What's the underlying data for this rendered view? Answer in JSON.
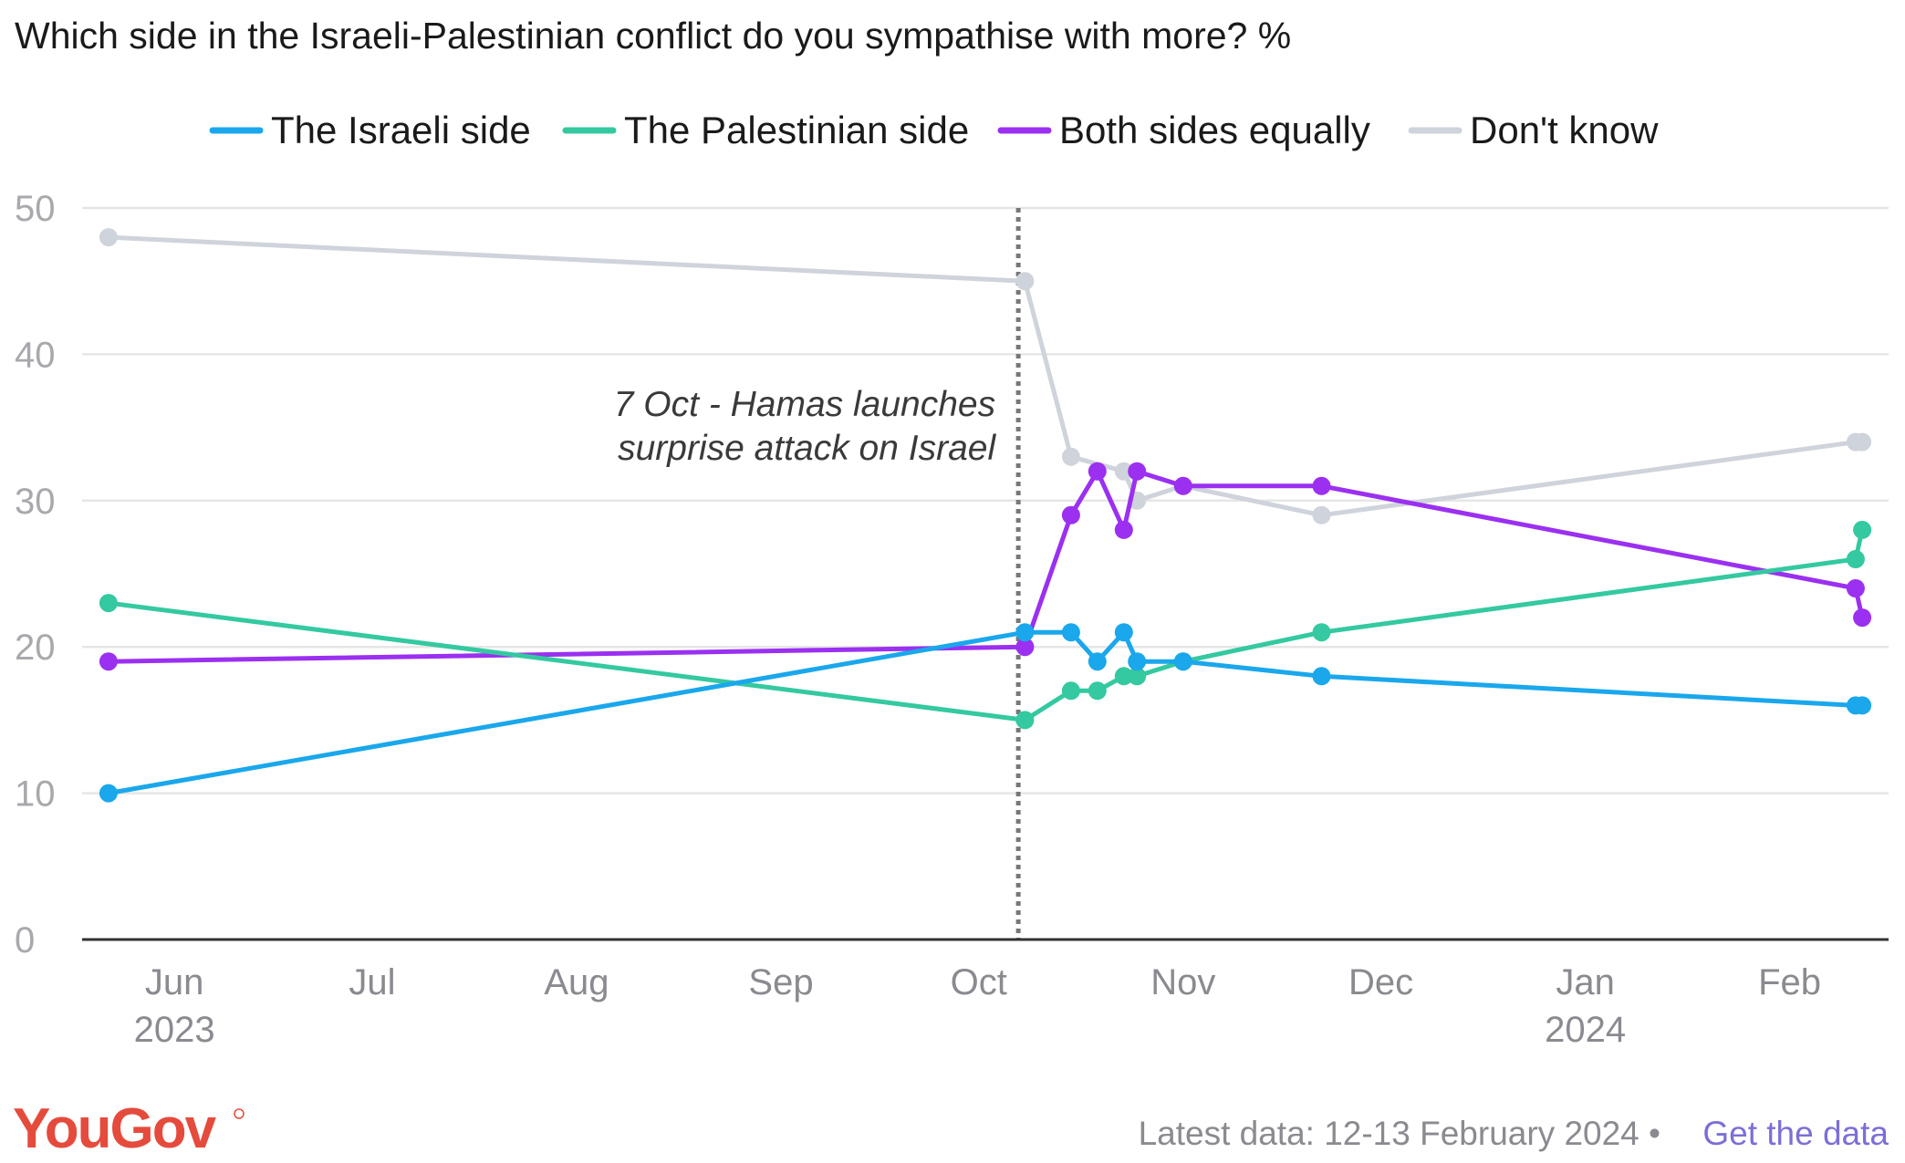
{
  "footer": {
    "latest_label": "Latest data: 12-13 February 2024 •",
    "link_label": "Get the data",
    "logo": "YouGov"
  },
  "colors": {
    "israeli": "#1aa7ec",
    "palestinian": "#34c9a0",
    "both": "#9b30f0",
    "dontknow": "#cfd3db",
    "gridline": "#e6e6e6",
    "axis": "#333333",
    "event_line": "#777777"
  },
  "chart_data": {
    "type": "line",
    "title": "Which side in the Israeli-Palestinian conflict do you sympathise with more? %",
    "ylim": [
      0,
      50
    ],
    "yticks": [
      "0",
      "10",
      "20",
      "30",
      "40",
      "50"
    ],
    "xlim": [
      "2023-05-18",
      "2024-02-16"
    ],
    "xticks": [
      {
        "date": "2023-06-01",
        "label": "Jun",
        "year": "2023"
      },
      {
        "date": "2023-07-01",
        "label": "Jul",
        "year": ""
      },
      {
        "date": "2023-08-01",
        "label": "Aug",
        "year": ""
      },
      {
        "date": "2023-09-01",
        "label": "Sep",
        "year": ""
      },
      {
        "date": "2023-10-01",
        "label": "Oct",
        "year": ""
      },
      {
        "date": "2023-11-01",
        "label": "Nov",
        "year": ""
      },
      {
        "date": "2023-12-01",
        "label": "Dec",
        "year": ""
      },
      {
        "date": "2024-01-01",
        "label": "Jan",
        "year": "2024"
      },
      {
        "date": "2024-02-01",
        "label": "Feb",
        "year": ""
      }
    ],
    "grid": true,
    "legend": "top",
    "annotation": {
      "date": "2023-10-07",
      "lines": [
        "7 Oct - Hamas launches",
        "surprise attack on Israel"
      ]
    },
    "series": [
      {
        "name": "The Israeli side",
        "color_key": "israeli",
        "points": [
          [
            "2023-05-22",
            10
          ],
          [
            "2023-10-08",
            21
          ],
          [
            "2023-10-15",
            21
          ],
          [
            "2023-10-19",
            19
          ],
          [
            "2023-10-23",
            21
          ],
          [
            "2023-10-25",
            19
          ],
          [
            "2023-11-01",
            19
          ],
          [
            "2023-11-22",
            18
          ],
          [
            "2024-02-11",
            16
          ],
          [
            "2024-02-12",
            16
          ]
        ]
      },
      {
        "name": "The Palestinian side",
        "color_key": "palestinian",
        "points": [
          [
            "2023-05-22",
            23
          ],
          [
            "2023-10-08",
            15
          ],
          [
            "2023-10-15",
            17
          ],
          [
            "2023-10-19",
            17
          ],
          [
            "2023-10-23",
            18
          ],
          [
            "2023-10-25",
            18
          ],
          [
            "2023-11-01",
            19
          ],
          [
            "2023-11-22",
            21
          ],
          [
            "2024-02-11",
            26
          ],
          [
            "2024-02-12",
            28
          ]
        ]
      },
      {
        "name": "Both sides equally",
        "color_key": "both",
        "points": [
          [
            "2023-05-22",
            19
          ],
          [
            "2023-10-08",
            20
          ],
          [
            "2023-10-15",
            29
          ],
          [
            "2023-10-19",
            32
          ],
          [
            "2023-10-23",
            28
          ],
          [
            "2023-10-25",
            32
          ],
          [
            "2023-11-01",
            31
          ],
          [
            "2023-11-22",
            31
          ],
          [
            "2024-02-11",
            24
          ],
          [
            "2024-02-12",
            22
          ]
        ]
      },
      {
        "name": "Don't know",
        "color_key": "dontknow",
        "points": [
          [
            "2023-05-22",
            48
          ],
          [
            "2023-10-08",
            45
          ],
          [
            "2023-10-15",
            33
          ],
          [
            "2023-10-23",
            32
          ],
          [
            "2023-10-25",
            30
          ],
          [
            "2023-11-01",
            31
          ],
          [
            "2023-11-22",
            29
          ],
          [
            "2024-02-11",
            34
          ],
          [
            "2024-02-12",
            34
          ]
        ]
      }
    ]
  }
}
